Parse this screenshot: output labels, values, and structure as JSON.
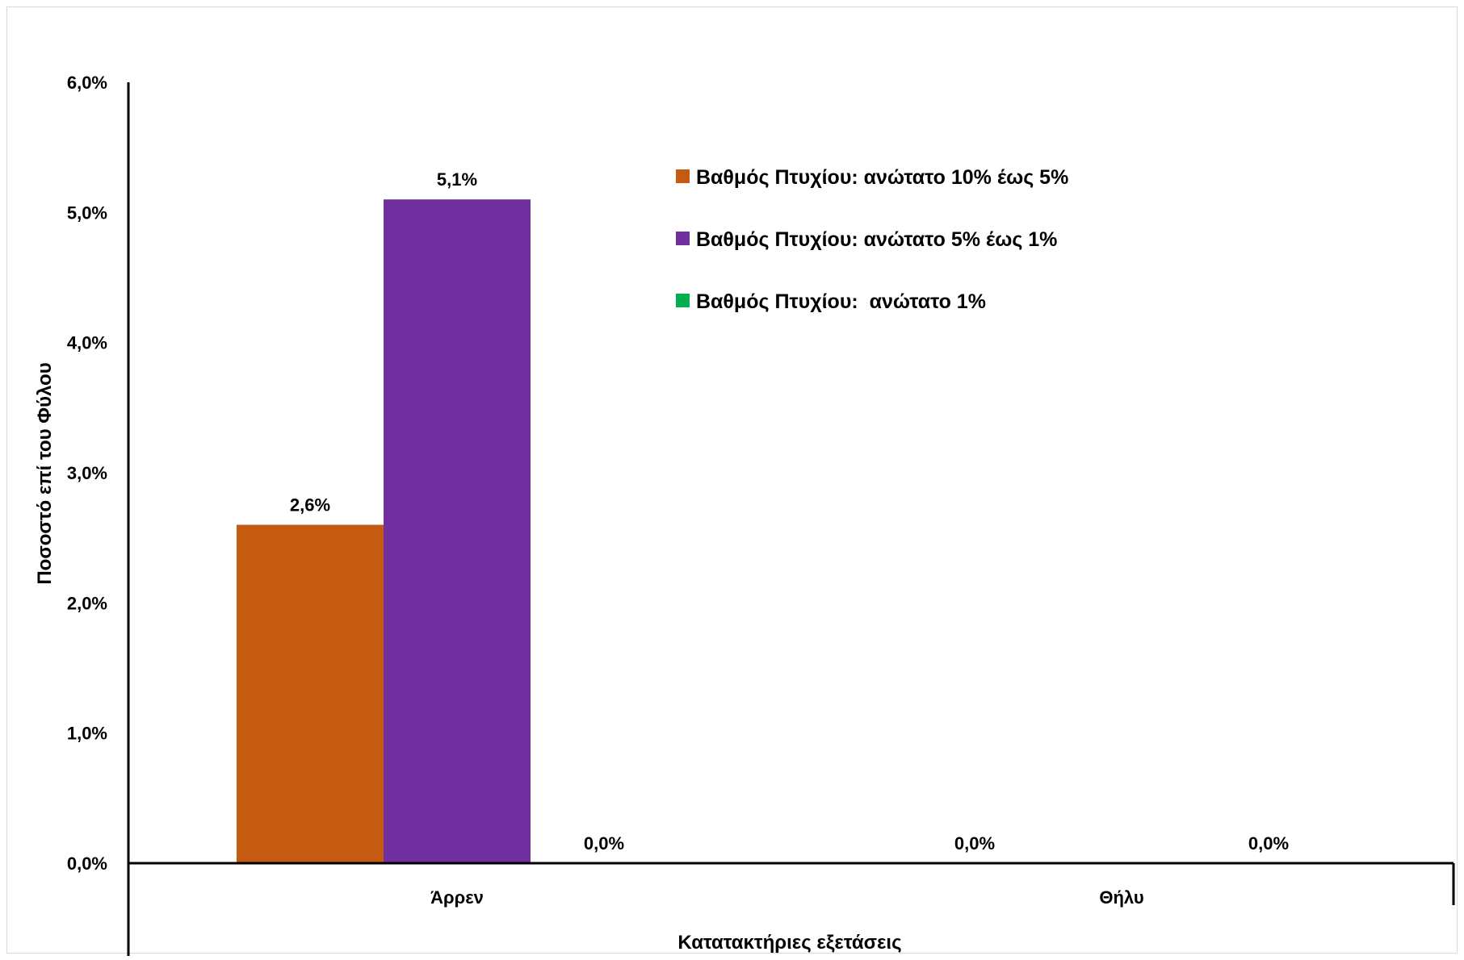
{
  "chart_data": {
    "type": "bar",
    "categories": [
      "Άρρεν",
      "Θήλυ"
    ],
    "series": [
      {
        "name": "Βαθμός Πτυχίου: ανώτατο 10% έως 5%",
        "color": "#C55A11",
        "values": [
          2.6,
          0.0
        ],
        "labels": [
          "2,6%",
          "0,0%"
        ]
      },
      {
        "name": "Βαθμός Πτυχίου: ανώτατο 5% έως 1%",
        "color": "#7030A0",
        "values": [
          5.1,
          0.0
        ],
        "labels": [
          "5,1%",
          "0,0%"
        ]
      },
      {
        "name": "Βαθμός Πτυχίου:  ανώτατο 1%",
        "color": "#00B050",
        "values": [
          0.0,
          0.0
        ],
        "labels": [
          "0,0%",
          "0,0%"
        ]
      }
    ],
    "visible_labels": [
      [
        true,
        true
      ],
      [
        true,
        false
      ],
      [
        true,
        true
      ]
    ],
    "yticks": [
      "0,0%",
      "1,0%",
      "2,0%",
      "3,0%",
      "4,0%",
      "5,0%",
      "6,0%"
    ],
    "ylim": [
      0,
      6
    ],
    "ylabel": "Ποσοστό επί του Φύλου",
    "xlabel": "Κατατακτήριες εξετάσεις",
    "title": "",
    "grid": false,
    "legend_position": "top-center"
  }
}
